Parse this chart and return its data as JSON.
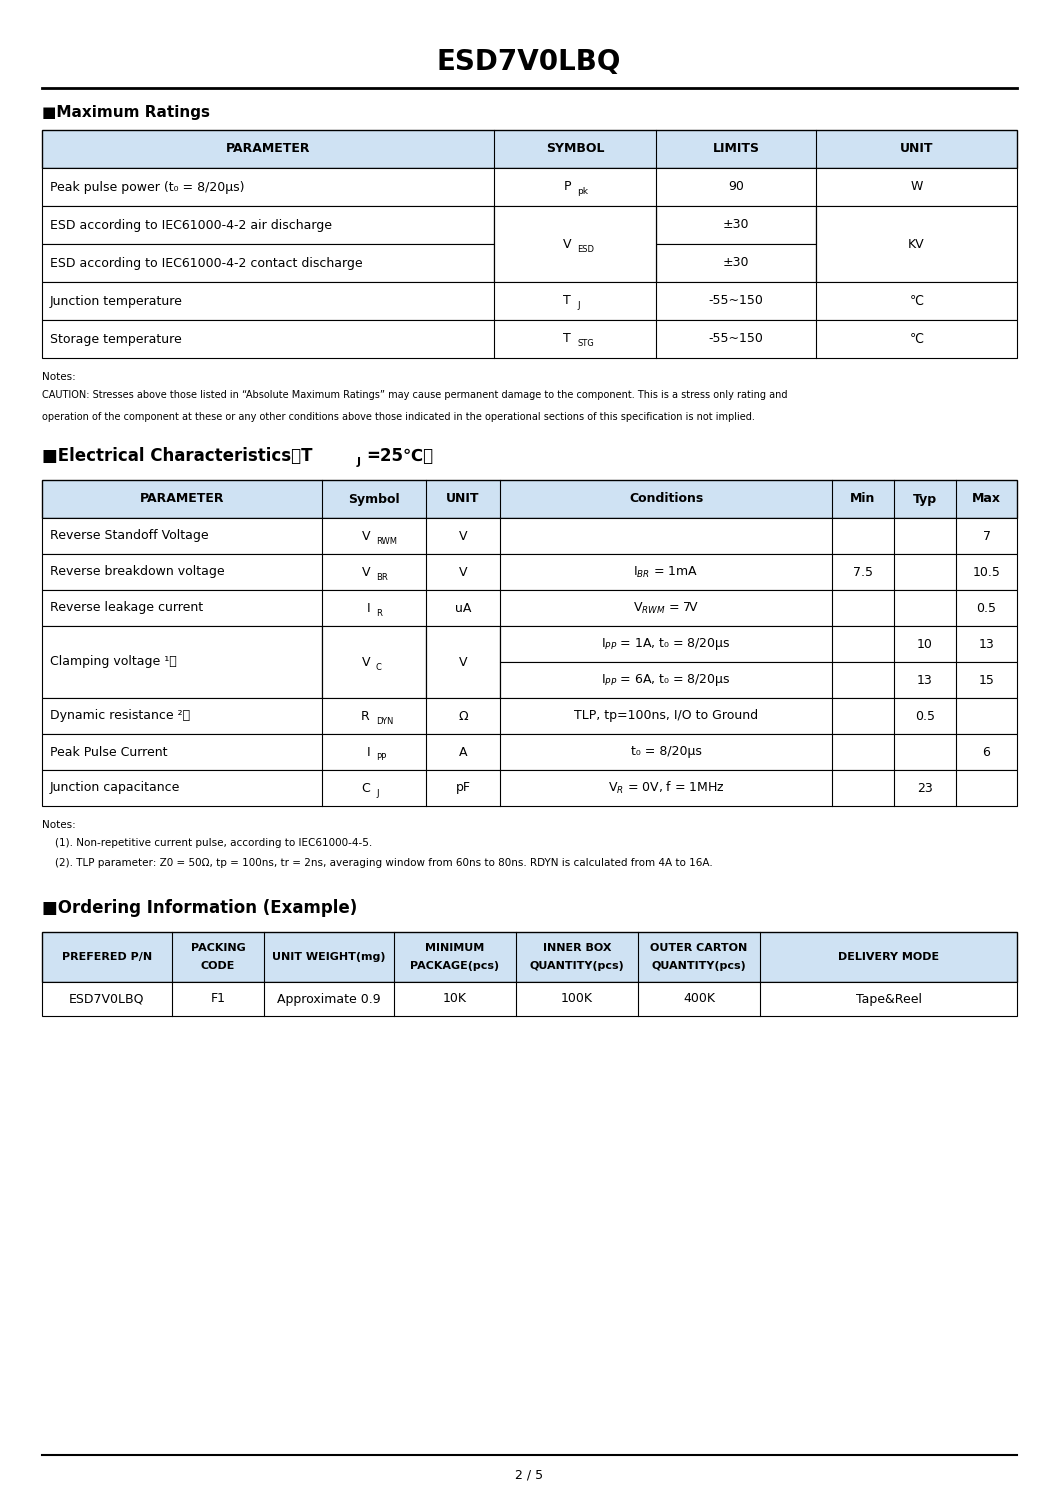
{
  "title": "ESD7V0LBQ",
  "page_num": "2 / 5",
  "bg_color": "#ffffff",
  "header_bg": "#cfe2f3",
  "section1_title": "■Maximum Ratings",
  "section2_title": "■Electrical Characteristics（T",
  "section2_sub": "J",
  "section2_rest": "=25℃）",
  "section3_title": "■Ordering Information (Example)",
  "max_headers": [
    "PARAMETER",
    "SYMBOL",
    "LIMITS",
    "UNIT"
  ],
  "elec_headers": [
    "PARAMETER",
    "Symbol",
    "UNIT",
    "Conditions",
    "Min",
    "Typ",
    "Max"
  ],
  "order_headers": [
    "PREFERED P/N",
    "PACKING\nCODE",
    "UNIT WEIGHT(mg)",
    "MINIMUM\nPACKAGE(pcs)",
    "INNER BOX\nQUANTITY(pcs)",
    "OUTER CARTON\nQUANTITY(pcs)",
    "DELIVERY MODE"
  ],
  "order_row": [
    "ESD7V0LBQ",
    "F1",
    "Approximate 0.9",
    "10K",
    "100K",
    "400K",
    "Tape&Reel"
  ],
  "notes1": [
    "Notes:",
    "CAUTION: Stresses above those listed in “Absolute Maximum Ratings” may cause permanent damage to the component. This is a stress only rating and",
    "operation of the component at these or any other conditions above those indicated in the operational sections of this specification is not implied."
  ],
  "notes2": [
    "Notes:",
    "    (1). Non-repetitive current pulse, according to IEC61000-4-5.",
    "    (2). TLP parameter: Z0 = 50Ω, tp = 100ns, tr = 2ns, averaging window from 60ns to 80ns. RDYN is calculated from 4A to 16A."
  ]
}
